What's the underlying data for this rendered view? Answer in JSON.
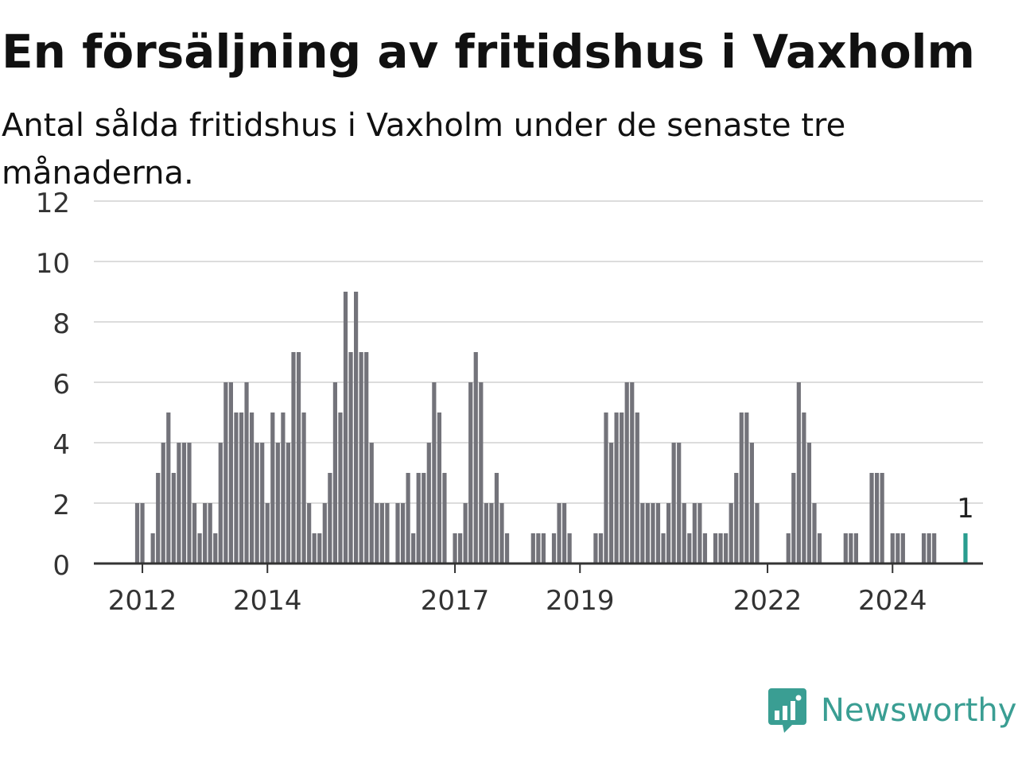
{
  "title": "En försäljning av fritidshus i Vaxholm",
  "subtitle": "Antal sålda fritidshus i Vaxholm under de senaste tre månaderna.",
  "brand": {
    "name": "Newsworthy",
    "color": "#3a9e93",
    "icon": "newsworthy-logo-icon"
  },
  "chart_data": {
    "type": "bar",
    "title": "En försäljning av fritidshus i Vaxholm",
    "subtitle": "Antal sålda fritidshus i Vaxholm under de senaste tre månaderna.",
    "ylim": [
      0,
      12
    ],
    "yticks": [
      0,
      2,
      4,
      6,
      8,
      10,
      12
    ],
    "xticks": [
      {
        "label": "2012",
        "year": 2012
      },
      {
        "label": "2014",
        "year": 2014
      },
      {
        "label": "2017",
        "year": 2017
      },
      {
        "label": "2019",
        "year": 2019
      },
      {
        "label": "2022",
        "year": 2022
      },
      {
        "label": "2024",
        "year": 2024
      }
    ],
    "grid": true,
    "bar_color": "#73737a",
    "highlight_color": "#2a9d8f",
    "start_month": "2011-12",
    "values": [
      2,
      2,
      0,
      1,
      3,
      4,
      5,
      3,
      4,
      4,
      4,
      2,
      1,
      2,
      2,
      1,
      4,
      6,
      6,
      5,
      5,
      6,
      5,
      4,
      4,
      2,
      5,
      4,
      5,
      4,
      7,
      7,
      5,
      2,
      1,
      1,
      2,
      3,
      6,
      5,
      9,
      7,
      9,
      7,
      7,
      4,
      2,
      2,
      2,
      0,
      2,
      2,
      3,
      1,
      3,
      3,
      4,
      6,
      5,
      3,
      0,
      1,
      1,
      2,
      6,
      7,
      6,
      2,
      2,
      3,
      2,
      1,
      0,
      0,
      0,
      0,
      1,
      1,
      1,
      0,
      1,
      2,
      2,
      1,
      0,
      0,
      0,
      0,
      1,
      1,
      5,
      4,
      5,
      5,
      6,
      6,
      5,
      2,
      2,
      2,
      2,
      1,
      2,
      4,
      4,
      2,
      1,
      2,
      2,
      1,
      0,
      1,
      1,
      1,
      2,
      3,
      5,
      5,
      4,
      2,
      0,
      0,
      0,
      0,
      0,
      1,
      3,
      6,
      5,
      4,
      2,
      1,
      0,
      0,
      0,
      0,
      1,
      1,
      1,
      0,
      0,
      3,
      3,
      3,
      0,
      1,
      1,
      1,
      0,
      0,
      0,
      1,
      1,
      1,
      0,
      0,
      0,
      0,
      0,
      1
    ],
    "highlight_last": true,
    "annotation": {
      "label": "1",
      "value": 1
    }
  }
}
